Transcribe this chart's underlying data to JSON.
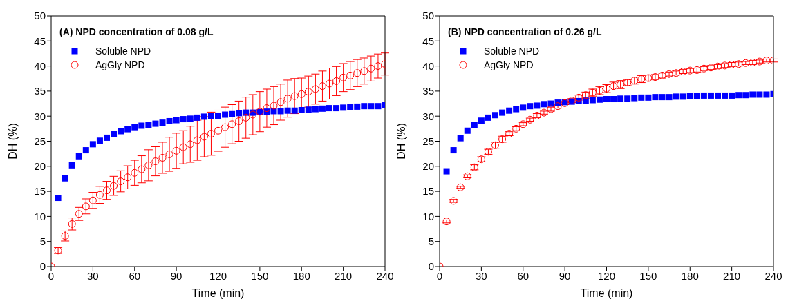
{
  "chart_data": [
    {
      "type": "scatter",
      "title": "(A) NPD concentration of 0.08 g/L",
      "xlabel": "Time (min)",
      "ylabel": "DH (%)",
      "legend": "top left",
      "grid": false,
      "x": [
        0,
        5,
        10,
        15,
        20,
        25,
        30,
        35,
        40,
        45,
        50,
        55,
        60,
        65,
        70,
        75,
        80,
        85,
        90,
        95,
        100,
        105,
        110,
        115,
        120,
        125,
        130,
        135,
        140,
        145,
        150,
        155,
        160,
        165,
        170,
        175,
        180,
        185,
        190,
        195,
        200,
        205,
        210,
        215,
        220,
        225,
        230,
        235,
        240
      ],
      "xlim": [
        0,
        240
      ],
      "xticks": [
        0,
        30,
        60,
        90,
        120,
        150,
        180,
        210,
        240
      ],
      "ylim": [
        0,
        50
      ],
      "yticks": [
        0,
        5,
        10,
        15,
        20,
        25,
        30,
        35,
        40,
        45,
        50
      ],
      "series": [
        {
          "name": "Soluble NPD",
          "color": "#0000ff",
          "marker": "square",
          "values": [
            null,
            13.7,
            17.6,
            20.2,
            22.0,
            23.2,
            24.4,
            25.1,
            25.7,
            26.5,
            27.0,
            27.4,
            27.8,
            28.1,
            28.3,
            28.5,
            28.7,
            29.0,
            29.2,
            29.4,
            29.5,
            29.7,
            29.9,
            30.0,
            30.1,
            30.3,
            30.4,
            30.6,
            30.7,
            30.7,
            30.8,
            30.9,
            31.0,
            31.0,
            31.1,
            31.1,
            31.2,
            31.3,
            31.4,
            31.5,
            31.6,
            31.6,
            31.7,
            31.8,
            31.9,
            32.0,
            32.0,
            32.0,
            32.2
          ]
        },
        {
          "name": "AgGly NPD",
          "color": "#ff0000",
          "marker": "circle",
          "values": [
            0,
            3.2,
            6.1,
            8.5,
            10.5,
            12.0,
            13.2,
            14.3,
            15.2,
            16.1,
            17.0,
            17.8,
            18.7,
            19.4,
            20.2,
            21.0,
            21.7,
            22.4,
            23.1,
            23.8,
            24.4,
            25.2,
            25.9,
            26.5,
            27.1,
            27.8,
            28.4,
            29.0,
            29.7,
            30.3,
            30.9,
            31.6,
            32.1,
            32.8,
            33.5,
            34.0,
            34.4,
            34.9,
            35.4,
            36.0,
            36.5,
            37.0,
            37.7,
            38.1,
            38.6,
            39.0,
            39.5,
            40.0,
            40.4
          ],
          "errors": [
            null,
            0.6,
            1.0,
            1.2,
            1.3,
            1.5,
            1.6,
            1.7,
            1.8,
            1.9,
            2.1,
            2.3,
            2.5,
            2.7,
            3.1,
            2.9,
            3.1,
            3.4,
            3.5,
            3.3,
            3.6,
            4.0,
            4.0,
            4.3,
            4.1,
            4.0,
            3.9,
            4.0,
            4.1,
            4.0,
            4.0,
            3.8,
            3.8,
            3.6,
            3.7,
            3.5,
            3.2,
            3.1,
            3.0,
            3.0,
            3.1,
            2.9,
            2.8,
            2.8,
            2.7,
            2.6,
            2.5,
            2.4,
            2.2
          ]
        }
      ]
    },
    {
      "type": "scatter",
      "title": "(B) NPD concentration of 0.26 g/L",
      "xlabel": "Time (min)",
      "ylabel": "DH (%)",
      "legend": "top left",
      "grid": false,
      "x": [
        0,
        5,
        10,
        15,
        20,
        25,
        30,
        35,
        40,
        45,
        50,
        55,
        60,
        65,
        70,
        75,
        80,
        85,
        90,
        95,
        100,
        105,
        110,
        115,
        120,
        125,
        130,
        135,
        140,
        145,
        150,
        155,
        160,
        165,
        170,
        175,
        180,
        185,
        190,
        195,
        200,
        205,
        210,
        215,
        220,
        225,
        230,
        235,
        240
      ],
      "xlim": [
        0,
        240
      ],
      "xticks": [
        0,
        30,
        60,
        90,
        120,
        150,
        180,
        210,
        240
      ],
      "ylim": [
        0,
        50
      ],
      "yticks": [
        0,
        5,
        10,
        15,
        20,
        25,
        30,
        35,
        40,
        45,
        50
      ],
      "series": [
        {
          "name": "Soluble NPD",
          "color": "#0000ff",
          "marker": "square",
          "values": [
            null,
            19.0,
            23.2,
            25.6,
            27.1,
            28.2,
            29.1,
            29.7,
            30.2,
            30.7,
            31.1,
            31.4,
            31.7,
            32.0,
            32.1,
            32.4,
            32.5,
            32.7,
            32.8,
            32.9,
            33.0,
            33.1,
            33.2,
            33.3,
            33.4,
            33.4,
            33.5,
            33.5,
            33.6,
            33.7,
            33.7,
            33.8,
            33.8,
            33.8,
            33.9,
            33.9,
            34.0,
            34.0,
            34.1,
            34.1,
            34.1,
            34.1,
            34.1,
            34.2,
            34.2,
            34.3,
            34.3,
            34.3,
            34.4
          ]
        },
        {
          "name": "AgGly NPD",
          "color": "#ff0000",
          "marker": "circle",
          "values": [
            0,
            9.0,
            13.1,
            15.8,
            18.0,
            19.8,
            21.4,
            22.9,
            24.2,
            25.4,
            26.5,
            27.5,
            28.4,
            29.3,
            30.1,
            30.7,
            31.4,
            32.0,
            32.6,
            33.1,
            33.7,
            34.2,
            34.7,
            35.1,
            35.5,
            36.0,
            36.3,
            36.7,
            37.1,
            37.4,
            37.6,
            37.8,
            38.1,
            38.4,
            38.6,
            38.9,
            39.1,
            39.2,
            39.5,
            39.7,
            39.9,
            40.1,
            40.3,
            40.4,
            40.6,
            40.7,
            40.9,
            41.1,
            41.1
          ],
          "errors": [
            null,
            0.3,
            0.3,
            0.2,
            0.3,
            0.5,
            0.5,
            0.5,
            0.6,
            0.6,
            0.4,
            0.4,
            0.3,
            0.3,
            0.4,
            0.3,
            0.4,
            0.4,
            0.3,
            0.4,
            0.5,
            0.6,
            0.7,
            0.8,
            0.8,
            0.8,
            0.8,
            0.6,
            0.7,
            0.7,
            0.6,
            0.5,
            0.5,
            0.4,
            0.4,
            0.4,
            0.4,
            0.4,
            0.4,
            0.4,
            0.4,
            0.4,
            0.4,
            0.4,
            0.3,
            0.4,
            0.3,
            0.3,
            0.3
          ]
        }
      ]
    }
  ]
}
